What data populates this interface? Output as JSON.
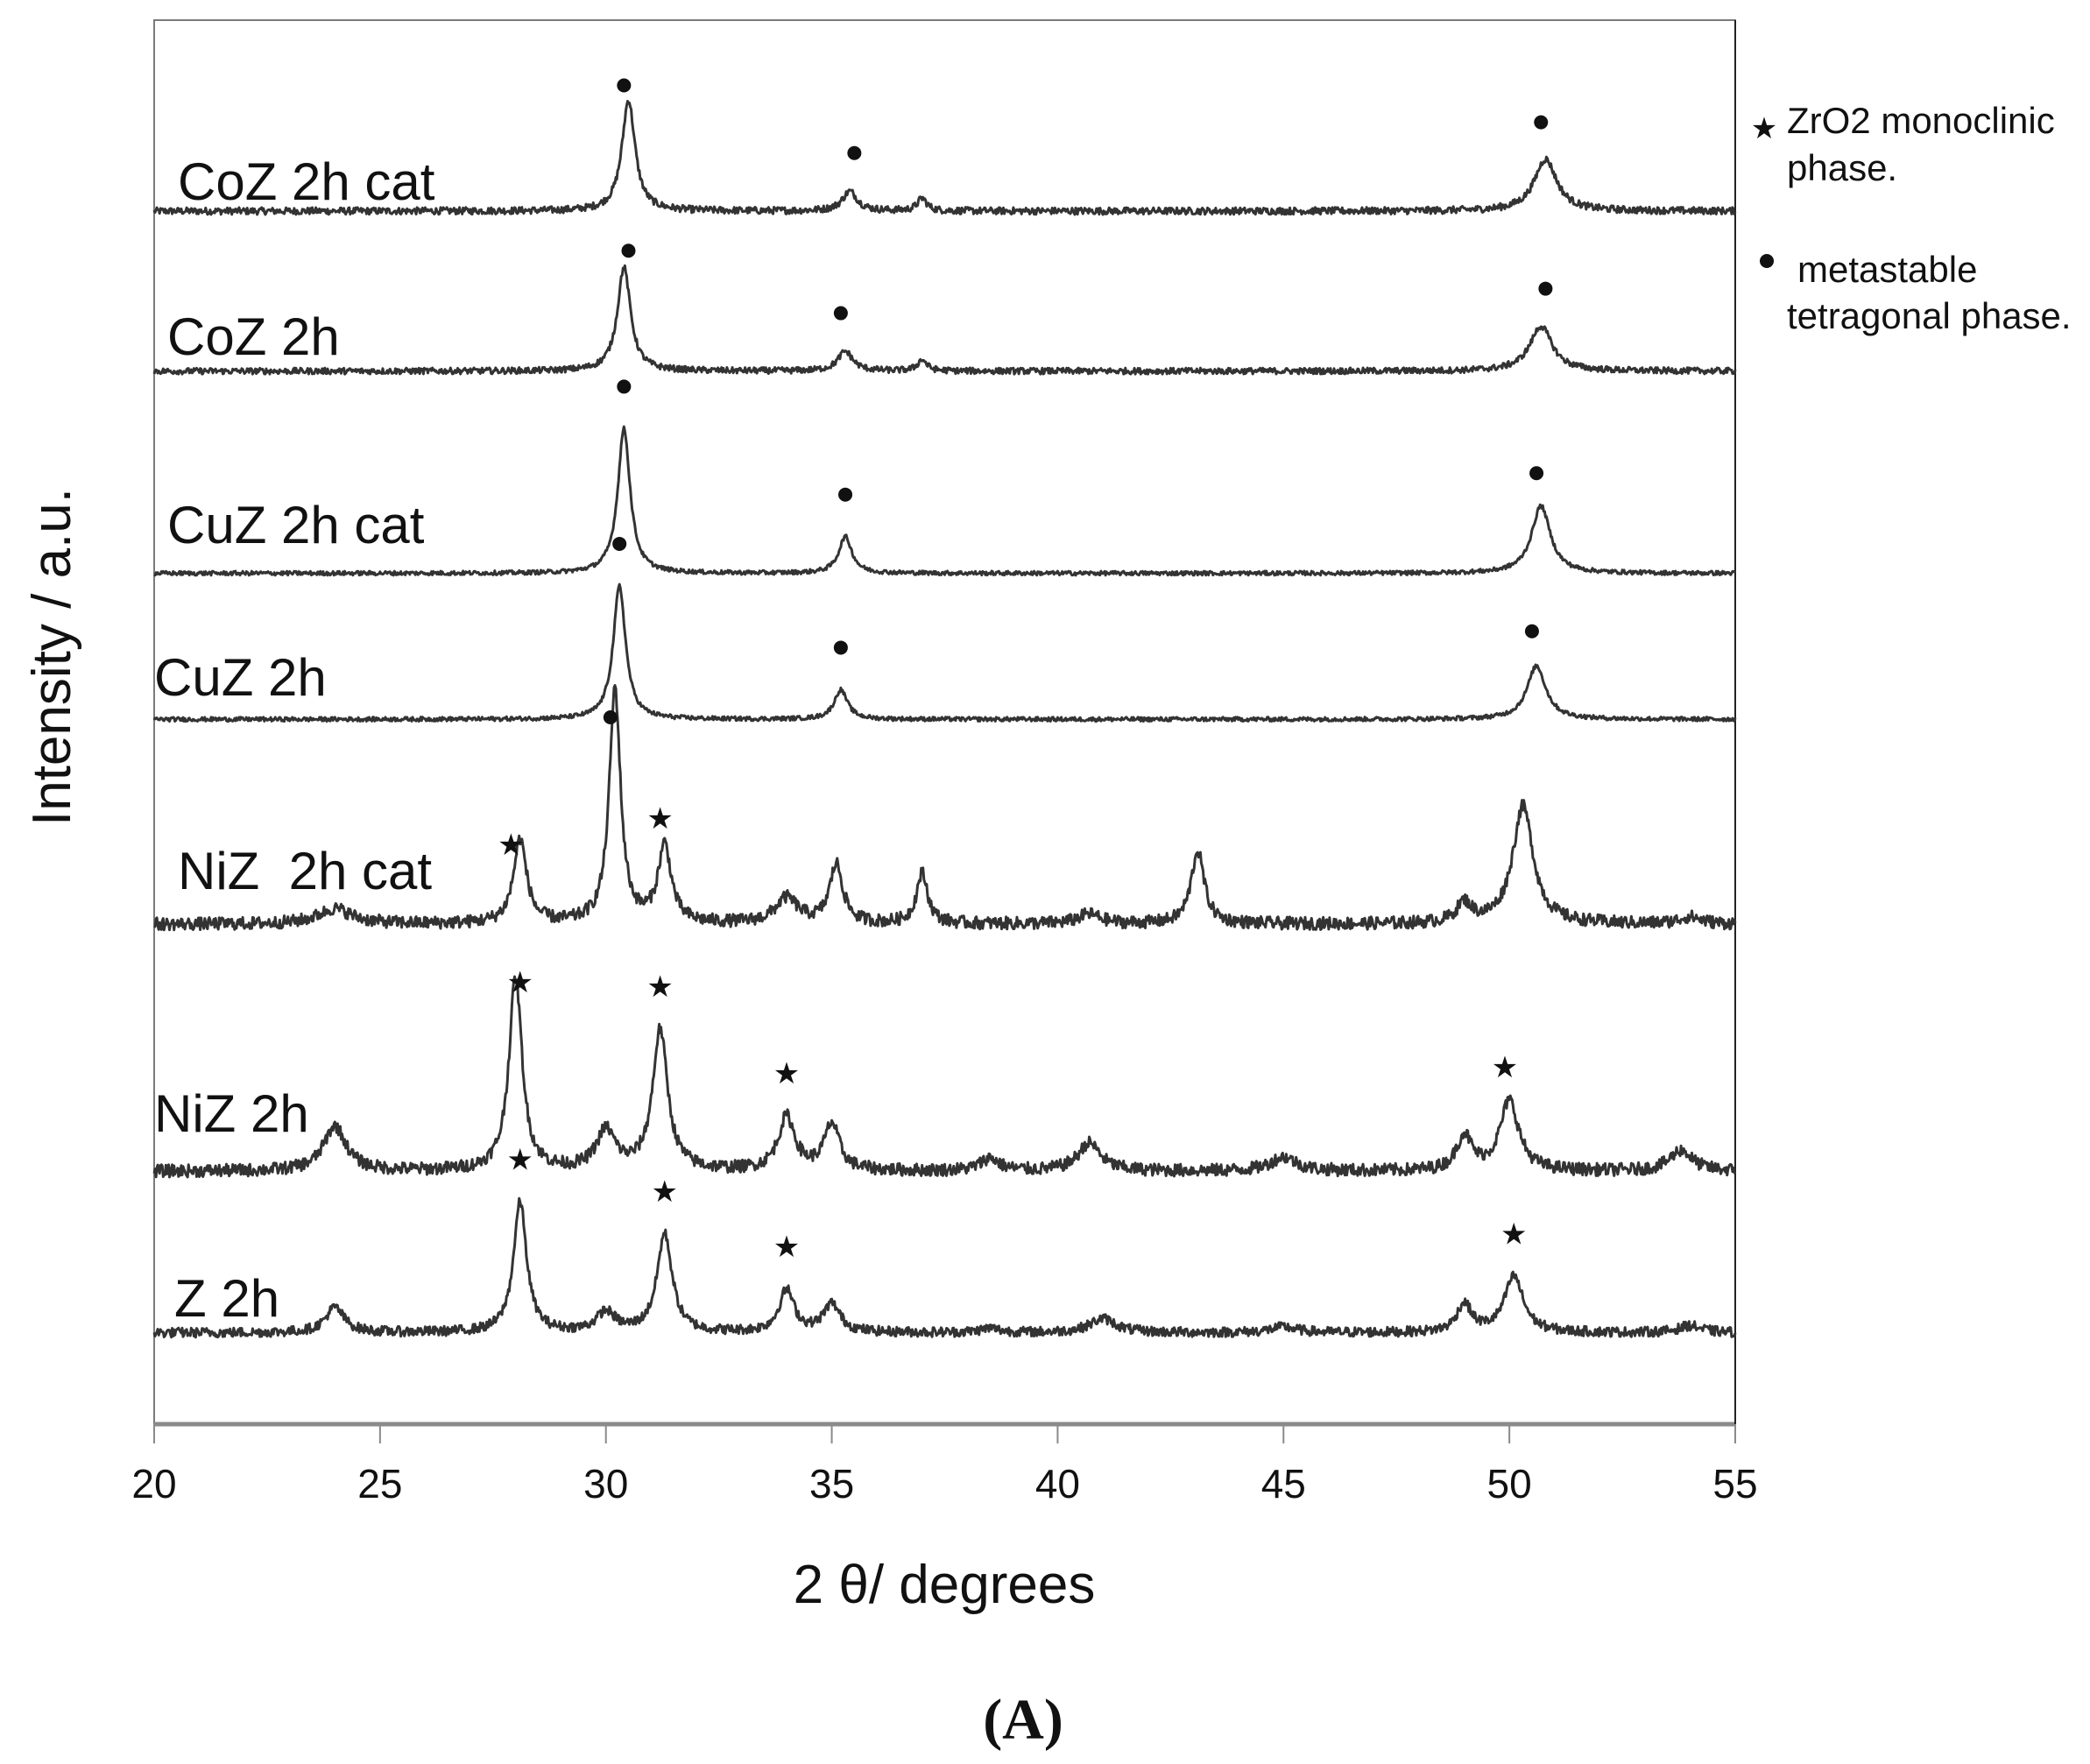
{
  "chart_data": {
    "type": "line",
    "xlabel": "2 θ/ degrees",
    "ylabel": "Intensity / a.u.",
    "panel_label": "(A)",
    "xlim": [
      20,
      55
    ],
    "ylim": [
      0,
      100
    ],
    "xticks": [
      20,
      25,
      30,
      35,
      40,
      45,
      50,
      55
    ],
    "grid": false,
    "line_color": "#333333",
    "legend": {
      "placement": "right-outside-top",
      "entries": [
        {
          "symbol": "star",
          "lines": [
            "ZrO2 monoclinic",
            "phase."
          ]
        },
        {
          "symbol": "dot",
          "lines": [
            "metastable",
            "tetragonal phase."
          ]
        }
      ]
    },
    "series": [
      {
        "name": "CoZ 2h cat",
        "baseline": 86.4,
        "noise": 0.25,
        "peaks": [
          [
            30.5,
            7.9,
            0.35
          ],
          [
            35.4,
            1.4,
            0.4
          ],
          [
            37.0,
            0.9,
            0.25
          ],
          [
            50.8,
            3.7,
            0.6
          ]
        ],
        "markers": [
          [
            "dot",
            30.4
          ],
          [
            "dot",
            35.5
          ],
          [
            "dot",
            50.7
          ]
        ]
      },
      {
        "name": "CoZ 2h",
        "baseline": 75.0,
        "noise": 0.22,
        "peaks": [
          [
            30.4,
            7.4,
            0.35
          ],
          [
            35.3,
            1.4,
            0.4
          ],
          [
            37.0,
            0.8,
            0.25
          ],
          [
            50.7,
            3.2,
            0.6
          ]
        ],
        "markers": [
          [
            "dot",
            30.5
          ],
          [
            "dot",
            35.2
          ],
          [
            "dot",
            50.8
          ]
        ]
      },
      {
        "name": "CuZ 2h cat",
        "baseline": 60.6,
        "noise": 0.15,
        "peaks": [
          [
            30.4,
            10.3,
            0.33
          ],
          [
            35.3,
            2.6,
            0.35
          ],
          [
            50.7,
            4.8,
            0.5
          ]
        ],
        "markers": [
          [
            "dot",
            30.4
          ],
          [
            "dot",
            35.3
          ],
          [
            "dot",
            50.6
          ]
        ]
      },
      {
        "name": "CuZ 2h",
        "baseline": 50.2,
        "noise": 0.15,
        "peaks": [
          [
            30.3,
            9.5,
            0.33
          ],
          [
            35.2,
            2.1,
            0.35
          ],
          [
            50.6,
            3.8,
            0.5
          ]
        ],
        "markers": [
          [
            "dot",
            30.3
          ],
          [
            "dot",
            35.2
          ],
          [
            "dot",
            50.5
          ]
        ]
      },
      {
        "name": "NiZ  2h cat",
        "baseline": 35.6,
        "noise": 0.45,
        "peaks": [
          [
            24.0,
            1.1,
            0.9
          ],
          [
            28.1,
            6.0,
            0.35
          ],
          [
            30.2,
            16.7,
            0.3
          ],
          [
            31.3,
            5.5,
            0.35
          ],
          [
            34.0,
            1.8,
            0.6
          ],
          [
            35.1,
            4.2,
            0.35
          ],
          [
            37.0,
            3.6,
            0.3
          ],
          [
            40.7,
            0.7,
            0.6
          ],
          [
            43.1,
            5.2,
            0.35
          ],
          [
            49.0,
            1.4,
            0.4
          ],
          [
            50.3,
            8.4,
            0.55
          ],
          [
            54.0,
            0.5,
            0.6
          ]
        ],
        "markers": [
          [
            "star",
            27.9
          ],
          [
            "dot",
            30.1
          ],
          [
            "star",
            31.2
          ]
        ]
      },
      {
        "name": "NiZ 2h",
        "baseline": 18.0,
        "noise": 0.45,
        "peaks": [
          [
            24.0,
            3.2,
            0.6
          ],
          [
            28.0,
            13.8,
            0.35
          ],
          [
            30.0,
            2.8,
            0.5
          ],
          [
            31.2,
            10.0,
            0.4
          ],
          [
            34.0,
            3.8,
            0.45
          ],
          [
            35.0,
            3.3,
            0.4
          ],
          [
            38.5,
            0.9,
            0.5
          ],
          [
            40.7,
            2.0,
            0.6
          ],
          [
            45.0,
            1.0,
            0.7
          ],
          [
            49.0,
            2.5,
            0.4
          ],
          [
            50.0,
            5.0,
            0.5
          ],
          [
            53.8,
            1.5,
            0.6
          ]
        ],
        "markers": [
          [
            "star",
            28.1
          ],
          [
            "star",
            31.2
          ],
          [
            "star",
            34.0
          ],
          [
            "star",
            49.9
          ]
        ]
      },
      {
        "name": "Z 2h",
        "baseline": 6.5,
        "noise": 0.35,
        "peaks": [
          [
            24.0,
            1.8,
            0.5
          ],
          [
            28.1,
            9.3,
            0.35
          ],
          [
            30.0,
            1.4,
            0.5
          ],
          [
            31.3,
            7.0,
            0.4
          ],
          [
            34.0,
            3.0,
            0.4
          ],
          [
            35.0,
            2.0,
            0.45
          ],
          [
            38.5,
            0.3,
            0.5
          ],
          [
            41.0,
            1.0,
            0.7
          ],
          [
            45.0,
            0.4,
            0.7
          ],
          [
            49.0,
            2.0,
            0.4
          ],
          [
            50.1,
            4.0,
            0.5
          ],
          [
            54.0,
            0.5,
            0.6
          ]
        ],
        "markers": [
          [
            "star",
            28.1
          ],
          [
            "star",
            31.3
          ],
          [
            "star",
            34.0
          ],
          [
            "star",
            50.1
          ]
        ]
      }
    ]
  }
}
